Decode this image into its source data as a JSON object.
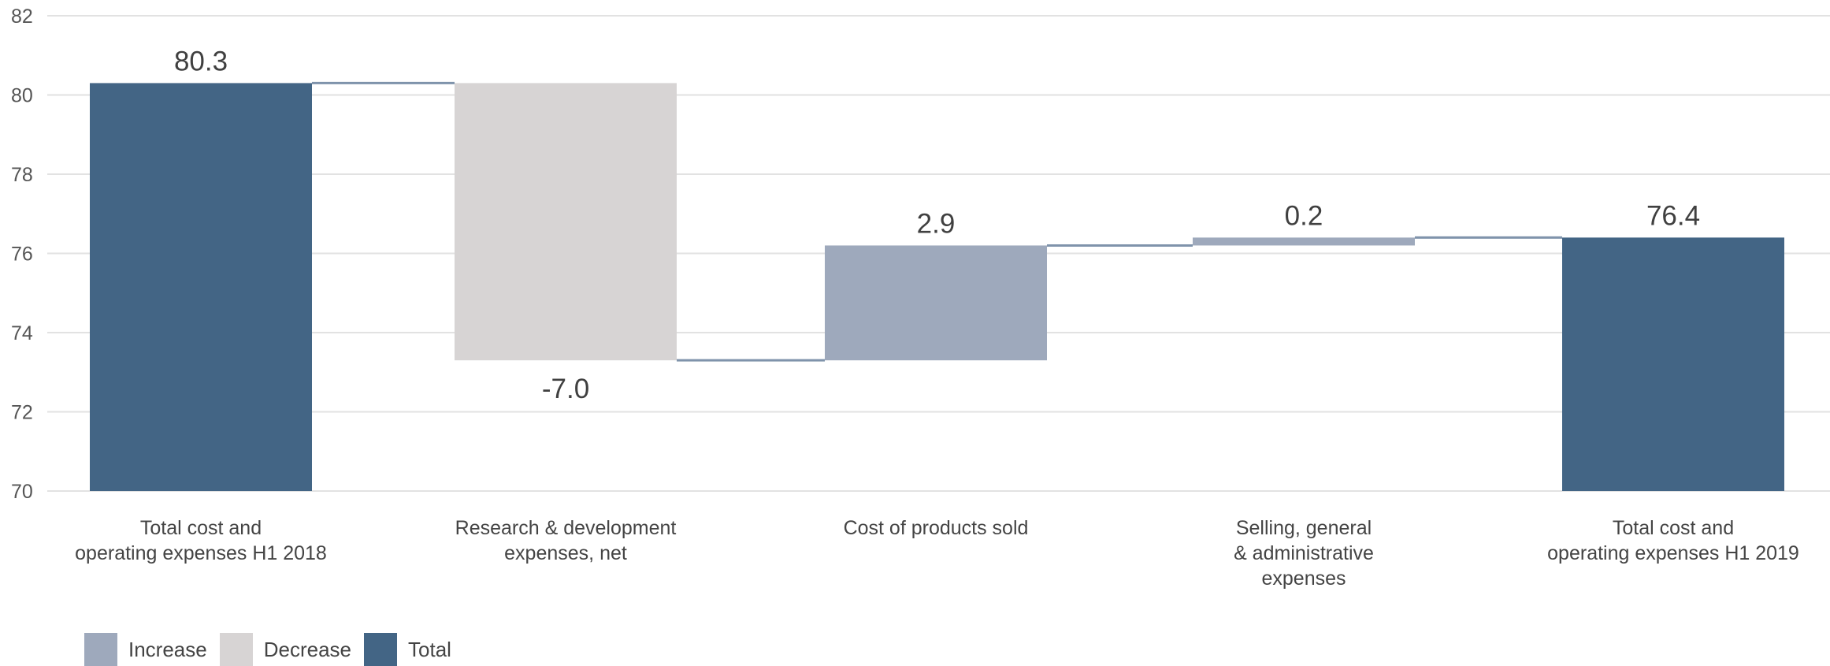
{
  "chart_data": {
    "type": "waterfall",
    "categories": [
      [
        "Total cost and",
        "operating expenses H1 2018"
      ],
      [
        "Research & development",
        "expenses, net"
      ],
      [
        "Cost of products sold"
      ],
      [
        "Selling, general",
        "& administrative",
        "expenses"
      ],
      [
        "Total cost and",
        "operating expenses H1 2019"
      ]
    ],
    "steps": [
      {
        "kind": "total",
        "start": 0,
        "end": 80.3,
        "label": "80.3"
      },
      {
        "kind": "decrease",
        "start": 80.3,
        "end": 73.3,
        "label": "-7.0"
      },
      {
        "kind": "increase",
        "start": 73.3,
        "end": 76.2,
        "label": "2.9"
      },
      {
        "kind": "increase",
        "start": 76.2,
        "end": 76.4,
        "label": "0.2"
      },
      {
        "kind": "total",
        "start": 0,
        "end": 76.4,
        "label": "76.4"
      }
    ],
    "ylim": [
      70,
      82
    ],
    "yticks": [
      "70",
      "72",
      "74",
      "76",
      "78",
      "80",
      "82"
    ],
    "grid": true,
    "legend": [
      {
        "name": "Increase",
        "color": "#9ea9bc"
      },
      {
        "name": "Decrease",
        "color": "#d7d4d4"
      },
      {
        "name": "Total",
        "color": "#436585"
      }
    ],
    "colors": {
      "increase": "#9ea9bc",
      "decrease": "#d7d4d4",
      "total": "#436585",
      "connector": "#7f93ab",
      "grid": "#e2e2e2"
    }
  }
}
